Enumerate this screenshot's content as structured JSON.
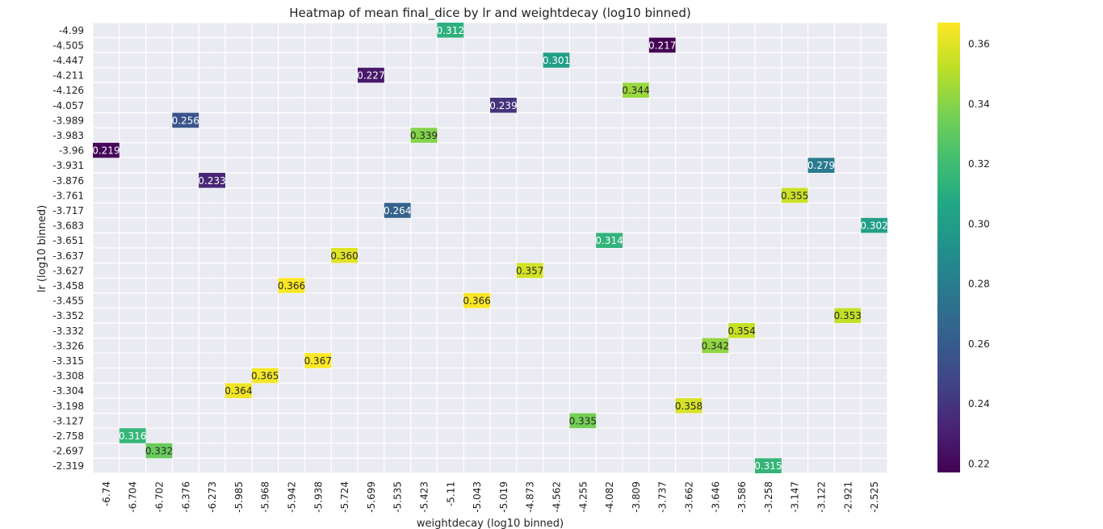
{
  "chart_data": {
    "type": "heatmap",
    "title": "Heatmap of mean final_dice by lr and weightdecay (log10 binned)",
    "xlabel": "weightdecay (log10 binned)",
    "ylabel": "lr (log10 binned)",
    "x_categories": [
      "-6.74",
      "-6.704",
      "-6.702",
      "-6.376",
      "-6.273",
      "-5.985",
      "-5.968",
      "-5.942",
      "-5.938",
      "-5.724",
      "-5.699",
      "-5.535",
      "-5.423",
      "-5.11",
      "-5.043",
      "-5.019",
      "-4.873",
      "-4.562",
      "-4.255",
      "-4.082",
      "-3.809",
      "-3.737",
      "-3.662",
      "-3.646",
      "-3.586",
      "-3.258",
      "-3.147",
      "-3.122",
      "-2.921",
      "-2.525"
    ],
    "y_categories": [
      "-4.99",
      "-4.505",
      "-4.447",
      "-4.211",
      "-4.126",
      "-4.057",
      "-3.989",
      "-3.983",
      "-3.96",
      "-3.931",
      "-3.876",
      "-3.761",
      "-3.717",
      "-3.683",
      "-3.651",
      "-3.637",
      "-3.627",
      "-3.458",
      "-3.455",
      "-3.352",
      "-3.332",
      "-3.326",
      "-3.315",
      "-3.308",
      "-3.304",
      "-3.198",
      "-3.127",
      "-2.758",
      "-2.697",
      "-2.319"
    ],
    "cells": [
      {
        "x": "-5.11",
        "y": "-4.99",
        "value": 0.312,
        "label": "0.312"
      },
      {
        "x": "-3.737",
        "y": "-4.505",
        "value": 0.217,
        "label": "0.217"
      },
      {
        "x": "-4.562",
        "y": "-4.447",
        "value": 0.301,
        "label": "0.301"
      },
      {
        "x": "-5.699",
        "y": "-4.211",
        "value": 0.227,
        "label": "0.227"
      },
      {
        "x": "-3.809",
        "y": "-4.126",
        "value": 0.344,
        "label": "0.344"
      },
      {
        "x": "-5.019",
        "y": "-4.057",
        "value": 0.239,
        "label": "0.239"
      },
      {
        "x": "-6.376",
        "y": "-3.989",
        "value": 0.256,
        "label": "0.256"
      },
      {
        "x": "-5.423",
        "y": "-3.983",
        "value": 0.339,
        "label": "0.339"
      },
      {
        "x": "-6.74",
        "y": "-3.96",
        "value": 0.219,
        "label": "0.219"
      },
      {
        "x": "-3.122",
        "y": "-3.931",
        "value": 0.279,
        "label": "0.279"
      },
      {
        "x": "-6.273",
        "y": "-3.876",
        "value": 0.233,
        "label": "0.233"
      },
      {
        "x": "-3.147",
        "y": "-3.761",
        "value": 0.355,
        "label": "0.355"
      },
      {
        "x": "-5.535",
        "y": "-3.717",
        "value": 0.264,
        "label": "0.264"
      },
      {
        "x": "-2.525",
        "y": "-3.683",
        "value": 0.302,
        "label": "0.302"
      },
      {
        "x": "-4.082",
        "y": "-3.651",
        "value": 0.314,
        "label": "0.314"
      },
      {
        "x": "-5.724",
        "y": "-3.637",
        "value": 0.36,
        "label": "0.360"
      },
      {
        "x": "-4.873",
        "y": "-3.627",
        "value": 0.357,
        "label": "0.357"
      },
      {
        "x": "-5.942",
        "y": "-3.458",
        "value": 0.366,
        "label": "0.366"
      },
      {
        "x": "-5.043",
        "y": "-3.455",
        "value": 0.366,
        "label": "0.366"
      },
      {
        "x": "-2.921",
        "y": "-3.352",
        "value": 0.353,
        "label": "0.353"
      },
      {
        "x": "-3.586",
        "y": "-3.332",
        "value": 0.354,
        "label": "0.354"
      },
      {
        "x": "-3.646",
        "y": "-3.326",
        "value": 0.342,
        "label": "0.342"
      },
      {
        "x": "-5.938",
        "y": "-3.315",
        "value": 0.367,
        "label": "0.367"
      },
      {
        "x": "-5.968",
        "y": "-3.308",
        "value": 0.365,
        "label": "0.365"
      },
      {
        "x": "-5.985",
        "y": "-3.304",
        "value": 0.364,
        "label": "0.364"
      },
      {
        "x": "-3.662",
        "y": "-3.198",
        "value": 0.358,
        "label": "0.358"
      },
      {
        "x": "-4.255",
        "y": "-3.127",
        "value": 0.335,
        "label": "0.335"
      },
      {
        "x": "-6.704",
        "y": "-2.758",
        "value": 0.316,
        "label": "0.316"
      },
      {
        "x": "-6.702",
        "y": "-2.697",
        "value": 0.332,
        "label": "0.332"
      },
      {
        "x": "-3.258",
        "y": "-2.319",
        "value": 0.315,
        "label": "0.315"
      }
    ],
    "colorbar": {
      "colormap": "viridis",
      "range": [
        0.217,
        0.367
      ],
      "ticks": [
        "0.22",
        "0.24",
        "0.26",
        "0.28",
        "0.30",
        "0.32",
        "0.34",
        "0.36"
      ]
    },
    "colors": {
      "background": "#eaeaf2",
      "grid": "#ffffff",
      "text": "#222222"
    },
    "grid": true
  }
}
